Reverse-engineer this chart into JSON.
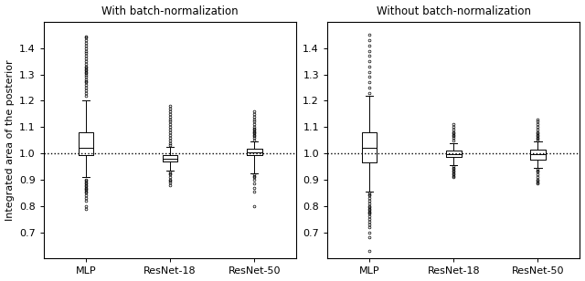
{
  "title_left": "With batch-normalization",
  "title_right": "Without batch-normalization",
  "ylabel": "Integrated area of the posterior",
  "categories": [
    "MLP",
    "ResNet-18",
    "ResNet-50"
  ],
  "ylim": [
    0.6,
    1.5
  ],
  "yticks": [
    0.7,
    0.8,
    0.9,
    1.0,
    1.1,
    1.2,
    1.3,
    1.4
  ],
  "hline_y": 1.0,
  "with_bn": {
    "MLP": {
      "whislo": 0.91,
      "q1": 0.995,
      "med": 1.02,
      "q3": 1.08,
      "whishi": 1.2,
      "fliers_low": [
        0.79,
        0.8,
        0.82,
        0.83,
        0.84,
        0.85,
        0.855,
        0.86,
        0.865,
        0.87,
        0.875,
        0.88,
        0.885,
        0.89,
        0.895,
        0.9
      ],
      "fliers_high": [
        1.22,
        1.23,
        1.24,
        1.25,
        1.26,
        1.27,
        1.275,
        1.28,
        1.29,
        1.3,
        1.305,
        1.31,
        1.315,
        1.32,
        1.325,
        1.33,
        1.34,
        1.35,
        1.36,
        1.37,
        1.38,
        1.39,
        1.4,
        1.41,
        1.42,
        1.43,
        1.44,
        1.445
      ]
    },
    "ResNet-18": {
      "whislo": 0.935,
      "q1": 0.968,
      "med": 0.978,
      "q3": 0.992,
      "whishi": 1.025,
      "fliers_low": [
        0.88,
        0.89,
        0.895,
        0.9,
        0.91,
        0.92,
        0.925,
        0.93
      ],
      "fliers_high": [
        1.03,
        1.04,
        1.05,
        1.06,
        1.07,
        1.08,
        1.09,
        1.1,
        1.11,
        1.12,
        1.13,
        1.14,
        1.15,
        1.16,
        1.17,
        1.18
      ]
    },
    "ResNet-50": {
      "whislo": 0.925,
      "q1": 0.995,
      "med": 1.005,
      "q3": 1.018,
      "whishi": 1.045,
      "fliers_low": [
        0.8,
        0.855,
        0.87,
        0.885,
        0.9,
        0.91,
        0.915,
        0.92
      ],
      "fliers_high": [
        1.05,
        1.06,
        1.065,
        1.07,
        1.075,
        1.08,
        1.085,
        1.09,
        1.095,
        1.1,
        1.11,
        1.12,
        1.13,
        1.14,
        1.15,
        1.16
      ]
    }
  },
  "without_bn": {
    "MLP": {
      "whislo": 0.855,
      "q1": 0.965,
      "med": 1.02,
      "q3": 1.08,
      "whishi": 1.22,
      "fliers_low": [
        0.63,
        0.68,
        0.7,
        0.72,
        0.73,
        0.74,
        0.75,
        0.76,
        0.77,
        0.775,
        0.78,
        0.785,
        0.79,
        0.795,
        0.8,
        0.81,
        0.82,
        0.83,
        0.84,
        0.845,
        0.85
      ],
      "fliers_high": [
        1.23,
        1.25,
        1.27,
        1.29,
        1.31,
        1.33,
        1.35,
        1.37,
        1.39,
        1.41,
        1.43,
        1.45
      ]
    },
    "ResNet-18": {
      "whislo": 0.955,
      "q1": 0.985,
      "med": 0.998,
      "q3": 1.01,
      "whishi": 1.04,
      "fliers_low": [
        0.91,
        0.915,
        0.92,
        0.925,
        0.93,
        0.935,
        0.94,
        0.945,
        0.95
      ],
      "fliers_high": [
        1.05,
        1.06,
        1.065,
        1.07,
        1.075,
        1.08,
        1.09,
        1.1,
        1.11
      ]
    },
    "ResNet-50": {
      "whislo": 0.945,
      "q1": 0.975,
      "med": 0.998,
      "q3": 1.015,
      "whishi": 1.045,
      "fliers_low": [
        0.885,
        0.89,
        0.895,
        0.9,
        0.91,
        0.92,
        0.93,
        0.935,
        0.94
      ],
      "fliers_high": [
        1.05,
        1.055,
        1.06,
        1.065,
        1.07,
        1.075,
        1.08,
        1.09,
        1.1,
        1.11,
        1.12,
        1.13
      ]
    }
  }
}
